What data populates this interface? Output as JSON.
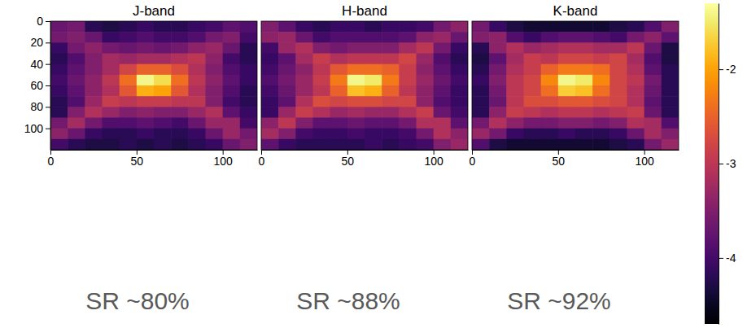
{
  "chart_data": [
    {
      "type": "heatmap",
      "title": "J-band",
      "color": "inferno",
      "clim": [
        -4.7,
        -1.3
      ],
      "xlim": [
        0,
        120
      ],
      "ylim": [
        0,
        120
      ],
      "xticks": [
        0,
        50,
        100
      ],
      "yticks": [
        0,
        20,
        40,
        60,
        80,
        100
      ],
      "annotation": "SR ~80%",
      "cells": [
        [
          -3.7,
          -3.6,
          -4.2,
          -4.3,
          -4.2,
          -4.1,
          -4.2,
          -4.2,
          -4.1,
          -4.0,
          -3.8,
          -3.9
        ],
        [
          -3.6,
          -3.5,
          -3.7,
          -4.1,
          -4.0,
          -3.9,
          -4.0,
          -4.0,
          -3.9,
          -3.6,
          -3.5,
          -4.0
        ],
        [
          -4.1,
          -3.6,
          -3.4,
          -3.6,
          -3.7,
          -3.6,
          -3.7,
          -3.6,
          -3.4,
          -3.3,
          -3.7,
          -4.2
        ],
        [
          -4.2,
          -3.9,
          -3.5,
          -3.2,
          -3.3,
          -3.2,
          -3.2,
          -3.1,
          -3.0,
          -3.4,
          -4.0,
          -4.2
        ],
        [
          -4.1,
          -3.8,
          -3.5,
          -3.2,
          -2.8,
          -2.5,
          -2.5,
          -2.7,
          -3.1,
          -3.5,
          -3.9,
          -4.1
        ],
        [
          -4.0,
          -3.7,
          -3.4,
          -3.0,
          -2.4,
          -1.4,
          -1.6,
          -2.4,
          -3.0,
          -3.4,
          -3.8,
          -4.1
        ],
        [
          -4.1,
          -3.8,
          -3.4,
          -3.1,
          -2.6,
          -1.9,
          -2.0,
          -2.6,
          -3.1,
          -3.5,
          -3.9,
          -4.2
        ],
        [
          -4.2,
          -3.9,
          -3.3,
          -2.9,
          -3.0,
          -2.9,
          -2.9,
          -3.0,
          -3.0,
          -3.5,
          -4.0,
          -4.2
        ],
        [
          -4.2,
          -3.5,
          -3.1,
          -3.3,
          -3.5,
          -3.4,
          -3.5,
          -3.5,
          -3.3,
          -3.1,
          -3.8,
          -4.1
        ],
        [
          -3.6,
          -3.2,
          -3.6,
          -3.9,
          -3.9,
          -3.8,
          -3.9,
          -4.0,
          -3.7,
          -3.3,
          -3.3,
          -4.0
        ],
        [
          -3.4,
          -3.7,
          -4.1,
          -4.2,
          -4.2,
          -4.1,
          -4.2,
          -4.2,
          -4.1,
          -3.7,
          -3.3,
          -3.6
        ],
        [
          -4.0,
          -4.2,
          -4.3,
          -4.3,
          -4.2,
          -4.3,
          -4.2,
          -4.3,
          -4.2,
          -4.1,
          -3.7,
          -3.5
        ]
      ]
    },
    {
      "type": "heatmap",
      "title": "H-band",
      "color": "inferno",
      "clim": [
        -4.7,
        -1.3
      ],
      "xlim": [
        0,
        120
      ],
      "ylim": [
        0,
        120
      ],
      "xticks": [
        0,
        50,
        100
      ],
      "tick_labels": "x",
      "annotation": "SR ~88%",
      "cells": [
        [
          -3.5,
          -3.8,
          -4.1,
          -4.2,
          -4.1,
          -4.1,
          -4.2,
          -4.1,
          -4.1,
          -4.0,
          -3.6,
          -3.4
        ],
        [
          -3.4,
          -3.3,
          -3.7,
          -4.0,
          -3.9,
          -3.9,
          -3.9,
          -3.9,
          -3.8,
          -3.4,
          -3.3,
          -3.7
        ],
        [
          -4.0,
          -3.3,
          -3.1,
          -3.5,
          -3.6,
          -3.5,
          -3.5,
          -3.5,
          -3.2,
          -3.0,
          -3.6,
          -4.1
        ],
        [
          -4.1,
          -3.8,
          -3.2,
          -2.9,
          -3.1,
          -3.0,
          -3.0,
          -3.0,
          -2.8,
          -3.3,
          -3.9,
          -4.2
        ],
        [
          -4.0,
          -3.7,
          -3.4,
          -3.0,
          -2.6,
          -2.4,
          -2.4,
          -2.5,
          -2.9,
          -3.4,
          -3.8,
          -4.1
        ],
        [
          -3.9,
          -3.6,
          -3.3,
          -2.9,
          -2.3,
          -1.4,
          -1.5,
          -2.3,
          -2.9,
          -3.3,
          -3.7,
          -4.0
        ],
        [
          -4.0,
          -3.7,
          -3.3,
          -3.0,
          -2.5,
          -1.8,
          -1.9,
          -2.5,
          -3.0,
          -3.4,
          -3.8,
          -4.1
        ],
        [
          -4.1,
          -3.8,
          -3.1,
          -2.7,
          -2.8,
          -2.7,
          -2.7,
          -2.8,
          -2.8,
          -3.4,
          -3.9,
          -4.1
        ],
        [
          -4.1,
          -3.3,
          -2.9,
          -3.1,
          -3.3,
          -3.2,
          -3.3,
          -3.3,
          -3.1,
          -2.9,
          -3.7,
          -4.0
        ],
        [
          -3.4,
          -3.0,
          -3.5,
          -3.8,
          -3.8,
          -3.7,
          -3.8,
          -3.8,
          -3.6,
          -3.1,
          -3.1,
          -3.8
        ],
        [
          -3.2,
          -3.5,
          -4.0,
          -4.1,
          -4.1,
          -4.0,
          -4.1,
          -4.1,
          -4.0,
          -3.6,
          -3.1,
          -3.4
        ],
        [
          -3.8,
          -4.1,
          -4.2,
          -4.2,
          -4.2,
          -4.2,
          -4.1,
          -4.2,
          -4.1,
          -4.0,
          -3.5,
          -3.3
        ]
      ]
    },
    {
      "type": "heatmap",
      "title": "K-band",
      "color": "inferno",
      "clim": [
        -4.7,
        -1.3
      ],
      "colorbar_ticks": [
        -2,
        -3,
        -4
      ],
      "xlim": [
        0,
        120
      ],
      "ylim": [
        0,
        120
      ],
      "xticks": [
        0,
        50,
        100
      ],
      "tick_labels": "x",
      "annotation": "SR ~92%",
      "cells": [
        [
          -3.6,
          -4.1,
          -4.3,
          -4.4,
          -4.4,
          -4.4,
          -4.4,
          -4.4,
          -4.3,
          -4.2,
          -3.9,
          -3.5
        ],
        [
          -3.5,
          -3.4,
          -3.9,
          -4.1,
          -3.9,
          -3.8,
          -3.8,
          -3.9,
          -4.0,
          -3.6,
          -3.4,
          -3.8
        ],
        [
          -4.2,
          -3.4,
          -3.1,
          -3.3,
          -3.2,
          -3.1,
          -3.1,
          -3.2,
          -3.2,
          -3.0,
          -3.7,
          -4.3
        ],
        [
          -4.3,
          -3.8,
          -3.2,
          -2.9,
          -3.0,
          -2.8,
          -2.8,
          -2.9,
          -2.8,
          -3.2,
          -3.9,
          -4.3
        ],
        [
          -4.2,
          -3.6,
          -3.1,
          -2.9,
          -2.5,
          -2.3,
          -2.3,
          -2.4,
          -2.8,
          -3.1,
          -3.8,
          -4.2
        ],
        [
          -4.1,
          -3.5,
          -3.0,
          -2.8,
          -2.2,
          -1.4,
          -1.5,
          -2.2,
          -2.8,
          -3.0,
          -3.6,
          -4.2
        ],
        [
          -4.2,
          -3.6,
          -3.0,
          -2.8,
          -2.4,
          -1.7,
          -1.8,
          -2.4,
          -2.8,
          -3.1,
          -3.7,
          -4.2
        ],
        [
          -4.2,
          -3.7,
          -3.0,
          -2.7,
          -2.7,
          -2.6,
          -2.6,
          -2.7,
          -2.8,
          -3.1,
          -3.8,
          -4.2
        ],
        [
          -4.2,
          -3.4,
          -2.9,
          -3.0,
          -3.1,
          -3.0,
          -3.0,
          -3.1,
          -3.0,
          -2.9,
          -3.7,
          -4.2
        ],
        [
          -3.6,
          -3.1,
          -3.4,
          -3.6,
          -3.6,
          -3.5,
          -3.5,
          -3.6,
          -3.5,
          -3.1,
          -3.2,
          -3.9
        ],
        [
          -3.3,
          -3.6,
          -4.1,
          -4.2,
          -4.2,
          -4.1,
          -4.2,
          -4.2,
          -4.1,
          -3.7,
          -3.2,
          -3.5
        ],
        [
          -3.9,
          -4.3,
          -4.4,
          -4.4,
          -4.4,
          -4.4,
          -4.4,
          -4.4,
          -4.3,
          -4.2,
          -3.6,
          -3.3
        ]
      ]
    }
  ]
}
